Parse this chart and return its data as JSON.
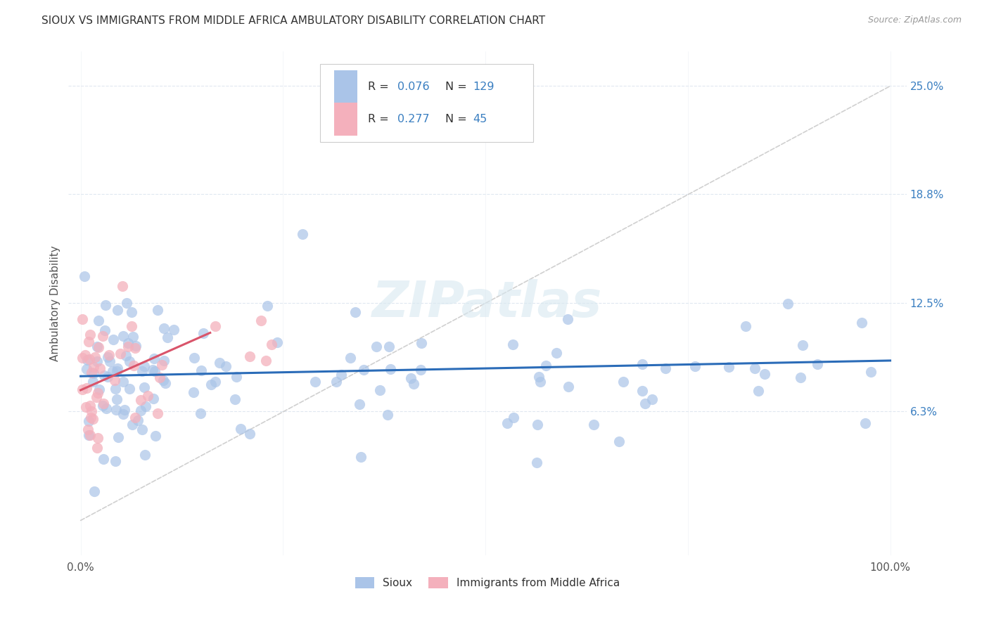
{
  "title": "SIOUX VS IMMIGRANTS FROM MIDDLE AFRICA AMBULATORY DISABILITY CORRELATION CHART",
  "source": "Source: ZipAtlas.com",
  "ylabel": "Ambulatory Disability",
  "sioux_R": 0.076,
  "sioux_N": 129,
  "immigrants_R": 0.277,
  "immigrants_N": 45,
  "sioux_color": "#aac4e8",
  "immigrants_color": "#f4b0bc",
  "sioux_line_color": "#2b6cb8",
  "immigrants_line_color": "#d9546a",
  "diagonal_color": "#c8c8c8",
  "legend_text_color": "#3a7fc1",
  "label_color": "#555555",
  "background_color": "#ffffff",
  "grid_color": "#e0e8f0",
  "ytick_color": "#3a7fc1",
  "xtick_color": "#555555",
  "title_color": "#333333",
  "source_color": "#999999"
}
